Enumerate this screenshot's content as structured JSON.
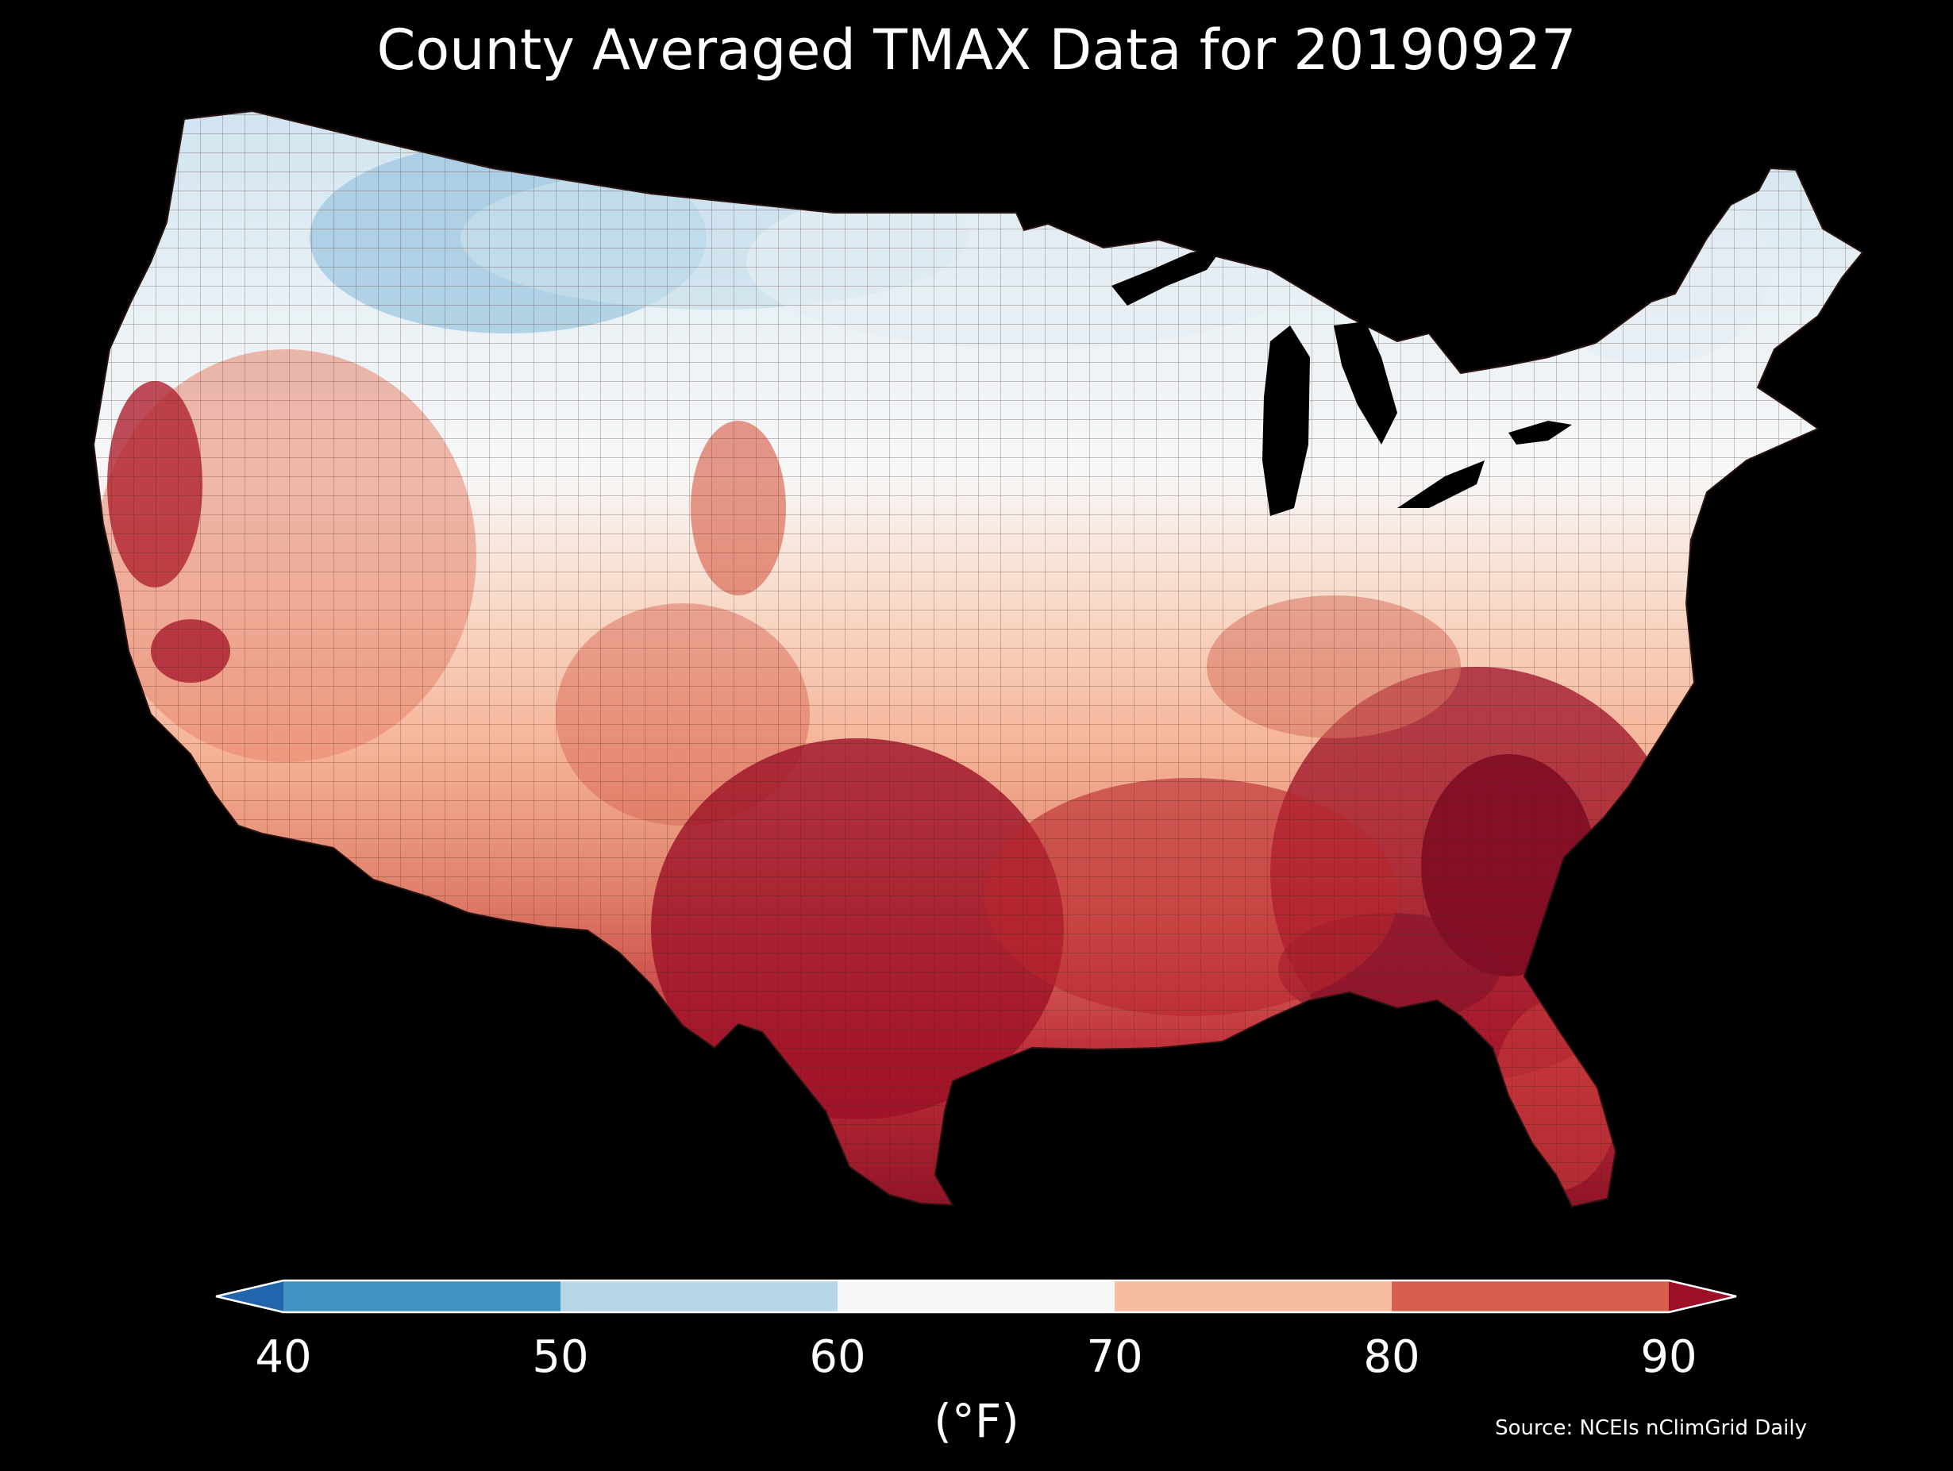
{
  "title": "County Averaged TMAX Data for 20190927",
  "source": "Source: NCEIs nClimGrid Daily",
  "colorbar": {
    "unit": "(°F)",
    "ticks": [
      "40",
      "50",
      "60",
      "70",
      "80",
      "90"
    ],
    "bins": [
      {
        "range": "<40",
        "color": "#2166ac"
      },
      {
        "range": "40-50",
        "color": "#4393c3"
      },
      {
        "range": "50-60",
        "color": "#b6d6e8"
      },
      {
        "range": "60-70",
        "color": "#f7f7f7"
      },
      {
        "range": "70-80",
        "color": "#f7bda1"
      },
      {
        "range": "80-90",
        "color": "#d6604d"
      },
      {
        "range": ">90",
        "color": "#9c1027"
      }
    ],
    "extend": "both"
  },
  "map": {
    "region": "Contiguous United States",
    "background": "#000000",
    "county_borders": "#3a1a12"
  }
}
